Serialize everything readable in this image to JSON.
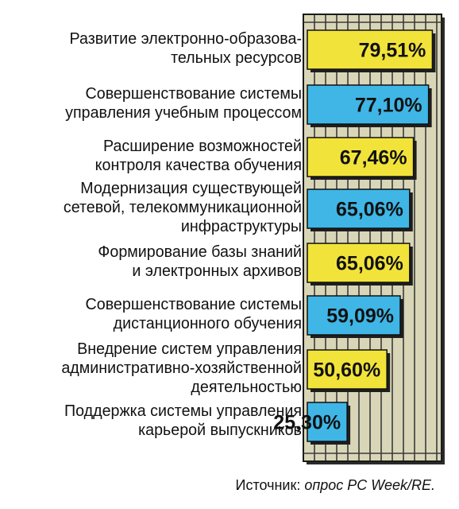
{
  "chart_data": {
    "type": "bar",
    "orientation": "horizontal",
    "categories": [
      [
        "Развитие электронно-образова-",
        "тельных ресурсов"
      ],
      [
        "Совершенствование системы",
        "управления учебным процессом"
      ],
      [
        "Расширение возможностей",
        "контроля качества обучения"
      ],
      [
        "Модернизация существующей",
        "сетевой, телекоммуникационной",
        "инфраструктуры"
      ],
      [
        "Формирование базы знаний",
        "и электронных архивов"
      ],
      [
        "Совершенствование системы",
        "дистанционного обучения"
      ],
      [
        "Внедрение систем управления",
        "административно-хозяйственной",
        "деятельностью"
      ],
      [
        "Поддержка системы управления",
        "карьерой выпускников"
      ]
    ],
    "values": [
      79.51,
      77.1,
      67.46,
      65.06,
      65.06,
      59.09,
      50.6,
      25.3
    ],
    "value_labels": [
      "79,51%",
      "77,10%",
      "67,46%",
      "65,06%",
      "65,06%",
      "59,09%",
      "50,60%",
      "25,30%"
    ],
    "bar_colors": [
      "#f2e33a",
      "#3fb6e6",
      "#f2e33a",
      "#3fb6e6",
      "#f2e33a",
      "#3fb6e6",
      "#f2e33a",
      "#3fb6e6"
    ],
    "grid": true,
    "grid_color": "#d9d6b8",
    "xlim": [
      0,
      100
    ]
  },
  "source": {
    "prefix": "Источник: ",
    "text": "опрос PC Week/RE."
  }
}
